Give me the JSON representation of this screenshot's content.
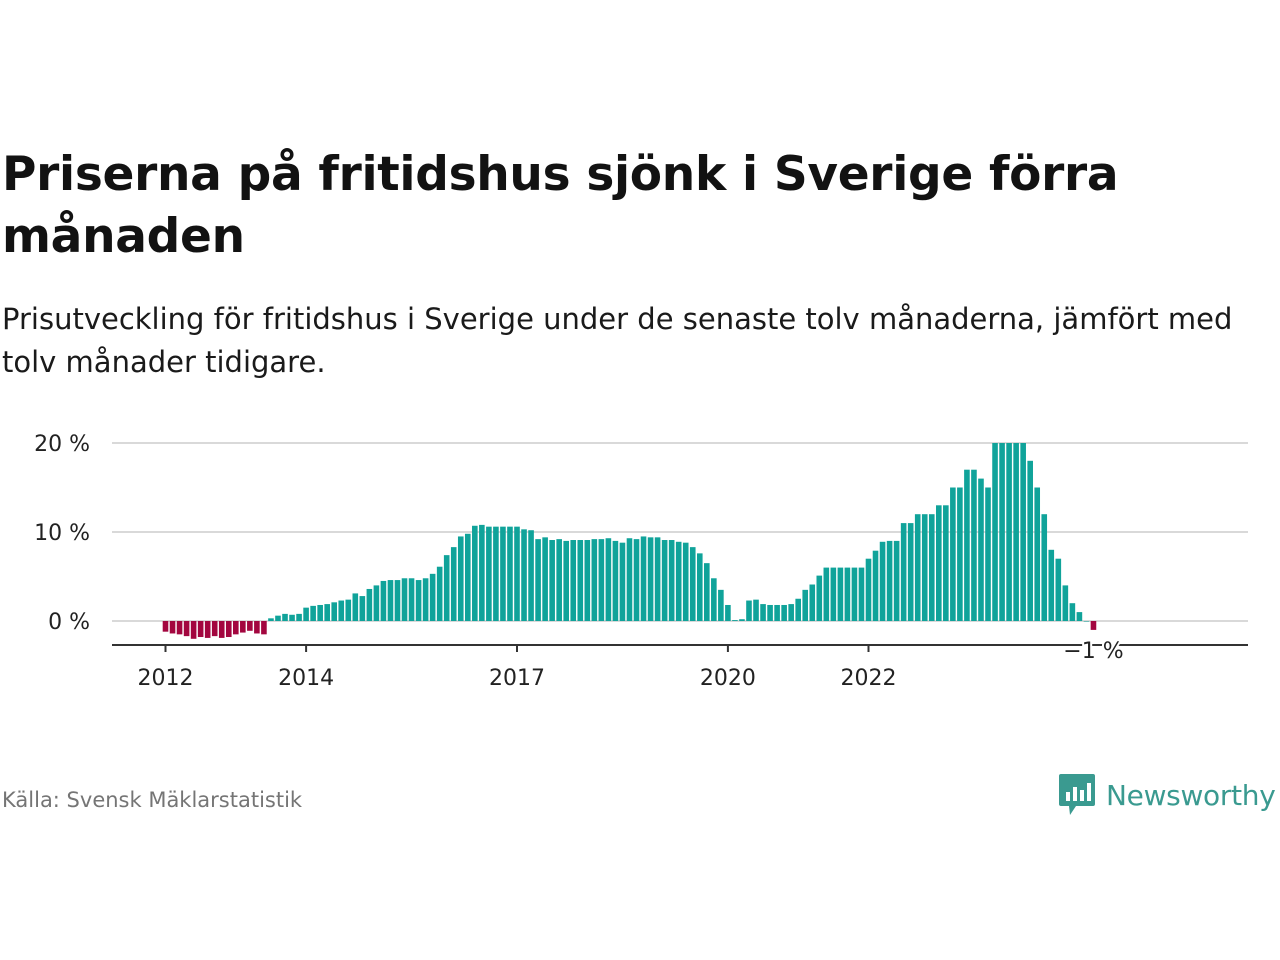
{
  "title": "Priserna på fritidshus sjönk i Sverige förra månaden",
  "subtitle": "Prisutveckling för fritidshus i Sverige under de senaste tolv månaderna, jämfört med tolv månader tidigare.",
  "source": "Källa: Svensk Mäklarstatistik",
  "brand": {
    "name": "Newsworthy",
    "icon": "bar-chart-speech-bubble-icon",
    "color": "#3a9a90"
  },
  "colors": {
    "positive": "#10a39a",
    "negative": "#a3063f",
    "grid": "#d9d9d9",
    "axis": "#333333"
  },
  "chart_data": {
    "type": "bar",
    "title": "Priserna på fritidshus sjönk i Sverige förra månaden",
    "xlabel": "",
    "ylabel": "",
    "ylim": [
      -2.5,
      20
    ],
    "grid": true,
    "legend": "none",
    "y_ticks": [
      {
        "value": 0,
        "label": "0 %"
      },
      {
        "value": 10,
        "label": "10 %"
      },
      {
        "value": 20,
        "label": "20 %"
      }
    ],
    "x_ticks": [
      {
        "index": 0,
        "label": "2012"
      },
      {
        "index": 20,
        "label": "2014"
      },
      {
        "index": 50,
        "label": "2017"
      },
      {
        "index": 80,
        "label": "2020"
      },
      {
        "index": 100,
        "label": "2022"
      }
    ],
    "last_value_label": "−1 %",
    "values": [
      -1.2,
      -1.4,
      -1.5,
      -1.7,
      -2.0,
      -1.8,
      -1.9,
      -1.7,
      -1.9,
      -1.8,
      -1.5,
      -1.3,
      -1.1,
      -1.4,
      -1.5,
      0.3,
      0.6,
      0.8,
      0.7,
      0.8,
      1.5,
      1.7,
      1.8,
      1.9,
      2.1,
      2.3,
      2.4,
      3.1,
      2.8,
      3.6,
      4.0,
      4.5,
      4.6,
      4.6,
      4.8,
      4.8,
      4.6,
      4.8,
      5.3,
      6.1,
      7.4,
      8.3,
      9.5,
      9.8,
      10.7,
      10.8,
      10.6,
      10.6,
      10.6,
      10.6,
      10.6,
      10.3,
      10.2,
      9.2,
      9.4,
      9.1,
      9.2,
      9.0,
      9.1,
      9.1,
      9.1,
      9.2,
      9.2,
      9.3,
      9.0,
      8.8,
      9.3,
      9.2,
      9.5,
      9.4,
      9.4,
      9.1,
      9.1,
      8.9,
      8.8,
      8.3,
      7.6,
      6.5,
      4.8,
      3.5,
      1.8,
      0.1,
      0.2,
      2.3,
      2.4,
      1.9,
      1.8,
      1.8,
      1.8,
      1.9,
      2.5,
      3.5,
      4.1,
      5.1,
      6.0,
      6.0,
      6.0,
      6.0,
      6.0,
      6.0,
      7.0,
      7.9,
      8.9,
      9.0,
      9.0,
      11.0,
      11.0,
      12.0,
      12.0,
      12.0,
      13.0,
      13.0,
      15.0,
      15.0,
      17.0,
      17.0,
      16.0,
      15.0,
      20.0,
      20.0,
      20.0,
      20.0,
      20.0,
      18.0,
      15.0,
      12.0,
      8.0,
      7.0,
      4.0,
      2.0,
      1.0,
      0,
      -1.0
    ]
  }
}
